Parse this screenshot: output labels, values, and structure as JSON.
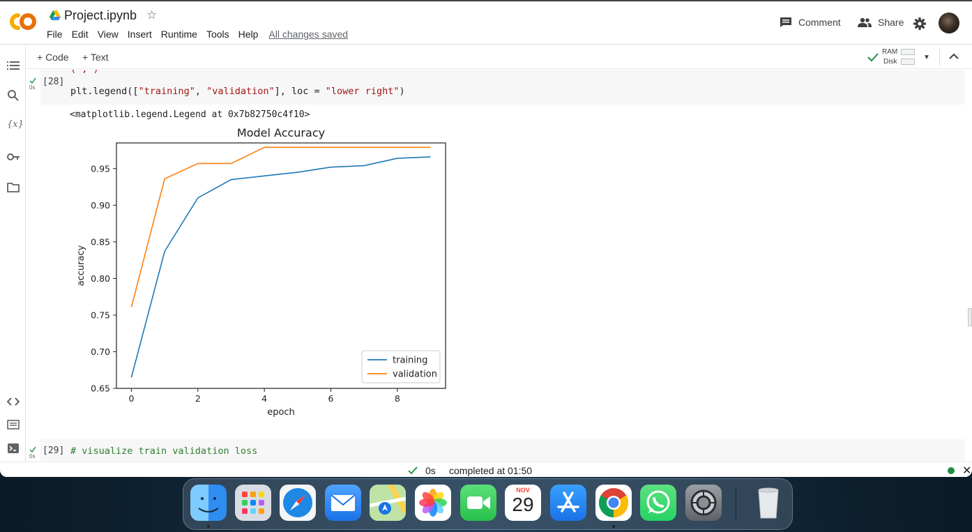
{
  "header": {
    "title": "Project.ipynb",
    "menu": [
      "File",
      "Edit",
      "View",
      "Insert",
      "Runtime",
      "Tools",
      "Help"
    ],
    "saved_status": "All changes saved",
    "comment_label": "Comment",
    "share_label": "Share"
  },
  "toolbar": {
    "add_code_label": "+ Code",
    "add_text_label": "+ Text",
    "ram_label": "RAM",
    "disk_label": "Disk"
  },
  "sidebar": {
    "items": [
      "table-of-contents",
      "find-replace",
      "variables",
      "secrets",
      "files",
      "code-snippets",
      "command-palette",
      "terminal"
    ]
  },
  "cells": {
    "cell28": {
      "exec_count": "[28]",
      "run_time": "0s",
      "code_parts": [
        "plt.legend([",
        "\"training\"",
        ", ",
        "\"validation\"",
        "], loc = ",
        "\"lower right\"",
        ")"
      ],
      "output_text": "<matplotlib.legend.Legend at 0x7b82750c4f10>"
    },
    "cell29": {
      "exec_count": "[29]",
      "run_time": "0s",
      "code": "# visualize train validation loss"
    }
  },
  "chart_data": {
    "type": "line",
    "title": "Model Accuracy",
    "xlabel": "epoch",
    "ylabel": "accuracy",
    "x": [
      0,
      1,
      2,
      3,
      4,
      5,
      6,
      7,
      8,
      9
    ],
    "xlim": [
      -0.45,
      9.45
    ],
    "ylim": [
      0.65,
      0.985
    ],
    "xticks": [
      0,
      2,
      4,
      6,
      8
    ],
    "yticks": [
      0.65,
      0.7,
      0.75,
      0.8,
      0.85,
      0.9,
      0.95
    ],
    "series": [
      {
        "name": "training",
        "color": "#1f77b4",
        "values": [
          0.665,
          0.837,
          0.91,
          0.935,
          0.94,
          0.945,
          0.952,
          0.954,
          0.964,
          0.966
        ]
      },
      {
        "name": "validation",
        "color": "#ff7f0e",
        "values": [
          0.761,
          0.936,
          0.957,
          0.957,
          0.979,
          0.979,
          0.979,
          0.979,
          0.979,
          0.979
        ]
      }
    ],
    "legend": "lower right",
    "grid": false
  },
  "statusbar": {
    "run_time": "0s",
    "completed_text": "completed at 01:50"
  },
  "dock": {
    "apps": [
      "Finder",
      "Launchpad",
      "Safari",
      "Mail",
      "Maps",
      "Photos",
      "FaceTime",
      "Calendar",
      "App Store",
      "Chrome",
      "WhatsApp",
      "System Settings",
      "Trash"
    ],
    "calendar_month": "NOV",
    "calendar_day": "29",
    "colors": {
      "safari": "#1e88e5",
      "mail": "#1a73e8",
      "facetime": "#34c759",
      "appstore": "#1a8cff",
      "whatsapp": "#25d366"
    }
  }
}
